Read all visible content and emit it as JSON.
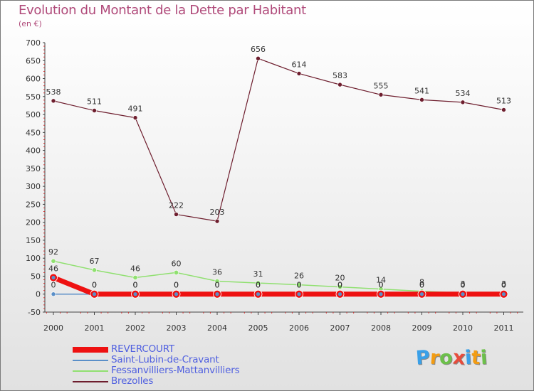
{
  "header": {
    "title": "Evolution du Montant de la Dette par Habitant",
    "unit": "(en €)"
  },
  "chart_data": {
    "type": "line",
    "title": "Evolution du Montant de la Dette par Habitant",
    "ylabel": "(en €)",
    "xlabel": "",
    "ylim": [
      -50,
      700
    ],
    "yticks": [
      -50,
      0,
      50,
      100,
      150,
      200,
      250,
      300,
      350,
      400,
      450,
      500,
      550,
      600,
      650,
      700
    ],
    "categories": [
      "2000",
      "2001",
      "2002",
      "2003",
      "2004",
      "2005",
      "2006",
      "2007",
      "2008",
      "2009",
      "2010",
      "2011"
    ],
    "series": [
      {
        "name": "Brezolles",
        "color": "#6e1e2e",
        "values": [
          538,
          511,
          491,
          222,
          203,
          656,
          614,
          583,
          555,
          541,
          534,
          513
        ]
      },
      {
        "name": "Fessanvilliers-Mattanvilliers",
        "color": "#90e070",
        "values": [
          92,
          67,
          46,
          60,
          36,
          31,
          26,
          20,
          14,
          8,
          3,
          3
        ]
      },
      {
        "name": "Saint-Lubin-de-Cravant",
        "color": "#5a8fc8",
        "values": [
          0,
          0,
          0,
          0,
          0,
          0,
          0,
          0,
          0,
          0,
          0,
          0
        ]
      },
      {
        "name": "REVERCOURT",
        "color": "#ee1111",
        "values": [
          46,
          0,
          0,
          0,
          0,
          0,
          0,
          0,
          0,
          0,
          0,
          0
        ]
      }
    ],
    "legend": [
      {
        "name": "REVERCOURT",
        "color": "#ee1111"
      },
      {
        "name": "Saint-Lubin-de-Cravant",
        "color": "#5a8fc8"
      },
      {
        "name": "Fessanvilliers-Mattanvilliers",
        "color": "#90e070"
      },
      {
        "name": "Brezolles",
        "color": "#6e1e2e"
      }
    ]
  },
  "logo": {
    "text": "Proxiti",
    "letters": [
      "P",
      "r",
      "o",
      "x",
      "i",
      "t",
      "i"
    ]
  }
}
